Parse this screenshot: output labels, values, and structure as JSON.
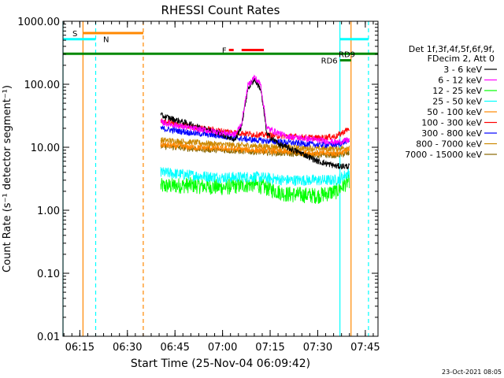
{
  "chart_data": {
    "type": "line",
    "title": "RHESSI Count Rates",
    "xlabel": "Start Time (25-Nov-04 06:09:42)",
    "ylabel": "Count Rate (s⁻¹ detector segment⁻¹)",
    "yscale": "log",
    "ylim": [
      0.01,
      1000
    ],
    "xlim": [
      "06:09:42",
      "07:49:00"
    ],
    "x_tick_labels": [
      "06:15",
      "06:30",
      "06:45",
      "07:00",
      "07:15",
      "07:30",
      "07:45"
    ],
    "y_tick_labels": [
      "0.01",
      "0.10",
      "1.00",
      "10.00",
      "100.00",
      "1000.00"
    ],
    "grid": false,
    "legend_position": "right",
    "legend_header": [
      "Det 1f,3f,4f,5f,6f,9f,",
      "FDecim 2, Att 0"
    ],
    "series": [
      {
        "name": "3 - 6 keV",
        "color": "#000000",
        "x": [
          "06:40:30",
          "06:50",
          "07:00",
          "07:04",
          "07:06",
          "07:08",
          "07:10",
          "07:12",
          "07:14",
          "07:18",
          "07:25",
          "07:30",
          "07:36",
          "07:40"
        ],
        "values": [
          32,
          23,
          16,
          13,
          22,
          85,
          120,
          85,
          16,
          11,
          8,
          6,
          5,
          5
        ]
      },
      {
        "name": "6 - 12 keV",
        "color": "#ff00ff",
        "x": [
          "06:40:30",
          "06:50",
          "07:00",
          "07:04",
          "07:06",
          "07:08",
          "07:10",
          "07:12",
          "07:14",
          "07:20",
          "07:30",
          "07:36",
          "07:40"
        ],
        "values": [
          25,
          20,
          17,
          16,
          24,
          95,
          130,
          100,
          20,
          15,
          13,
          12,
          13
        ]
      },
      {
        "name": "12 - 25 keV",
        "color": "#00ff00",
        "x": [
          "06:40:30",
          "06:50",
          "07:00",
          "07:10",
          "07:20",
          "07:30",
          "07:36",
          "07:40"
        ],
        "values": [
          2.4,
          2.5,
          2.3,
          2.6,
          1.8,
          1.7,
          2.0,
          3.0
        ]
      },
      {
        "name": "25 - 50 keV",
        "color": "#00ffff",
        "x": [
          "06:40:30",
          "06:50",
          "07:00",
          "07:10",
          "07:20",
          "07:30",
          "07:36",
          "07:40"
        ],
        "values": [
          4.0,
          3.6,
          3.3,
          3.4,
          3.0,
          3.0,
          3.0,
          4.0
        ]
      },
      {
        "name": "50 - 100 keV",
        "color": "#ff8800",
        "x": [
          "06:40:30",
          "06:50",
          "07:00",
          "07:10",
          "07:20",
          "07:30",
          "07:36",
          "07:40"
        ],
        "values": [
          11,
          10,
          9.5,
          9,
          8.5,
          8,
          8,
          9
        ]
      },
      {
        "name": "100 - 300 keV",
        "color": "#ff0000",
        "x": [
          "06:40:30",
          "06:50",
          "07:00",
          "07:10",
          "07:20",
          "07:30",
          "07:36",
          "07:40"
        ],
        "values": [
          26,
          21,
          18,
          16,
          15,
          14,
          15,
          20
        ]
      },
      {
        "name": "300 - 800 keV",
        "color": "#0000ff",
        "x": [
          "06:40:30",
          "06:50",
          "07:00",
          "07:10",
          "07:20",
          "07:30",
          "07:36",
          "07:40"
        ],
        "values": [
          20,
          17,
          15,
          13,
          12,
          11,
          11,
          13
        ]
      },
      {
        "name": "800 - 7000 keV",
        "color": "#cc8800",
        "x": [
          "06:40:30",
          "06:50",
          "07:00",
          "07:10",
          "07:20",
          "07:30",
          "07:36",
          "07:40"
        ],
        "values": [
          13,
          12,
          11,
          10.5,
          10,
          9.5,
          9.5,
          10
        ]
      },
      {
        "name": "7000 - 15000 keV",
        "color": "#886600",
        "x": [
          "06:40:30",
          "06:50",
          "07:00",
          "07:10",
          "07:20",
          "07:30",
          "07:36",
          "07:40"
        ],
        "values": [
          10.5,
          9.5,
          9,
          8.5,
          8,
          7.5,
          7.5,
          8
        ]
      }
    ],
    "flags": [
      {
        "label": "S",
        "color": "#ff8800",
        "start": "06:16:00",
        "end": "06:35:00",
        "level": 650,
        "label_side": "left"
      },
      {
        "label": "N",
        "color": "#00ffff",
        "start": "06:09:42",
        "end": "06:20:00",
        "level": 520,
        "label_side": "right"
      },
      {
        "label": "N",
        "color": "#00ffff",
        "start": "07:37:00",
        "end": "07:46:00",
        "level": 520,
        "label_side": "none"
      },
      {
        "label": "F",
        "color": "#ff0000",
        "start": "07:02:00",
        "end": "07:03:30",
        "level": 350,
        "label_side": "left"
      },
      {
        "label": "",
        "color": "#ff0000",
        "start": "07:06:00",
        "end": "07:13:00",
        "level": 350,
        "label_side": "none"
      },
      {
        "label": "RD9",
        "color": "#008800",
        "start": "06:09:42",
        "end": "07:49:00",
        "level": 305,
        "label_side": "right"
      },
      {
        "label": "RD6",
        "color": "#008800",
        "start": "07:37:00",
        "end": "07:40:30",
        "level": 240,
        "label_side": "left"
      }
    ],
    "vertical_markers": [
      {
        "time": "06:09:42",
        "color": "#00ffff",
        "style": "solid"
      },
      {
        "time": "06:16:00",
        "color": "#ff8800",
        "style": "solid"
      },
      {
        "time": "06:20:00",
        "color": "#00ffff",
        "style": "dashed"
      },
      {
        "time": "06:35:00",
        "color": "#ff8800",
        "style": "dashed"
      },
      {
        "time": "07:37:00",
        "color": "#00ffff",
        "style": "solid"
      },
      {
        "time": "07:40:30",
        "color": "#ff8800",
        "style": "solid"
      },
      {
        "time": "07:46:00",
        "color": "#00ffff",
        "style": "dashed"
      }
    ],
    "footer_timestamp": "23-Oct-2021 08:05"
  }
}
